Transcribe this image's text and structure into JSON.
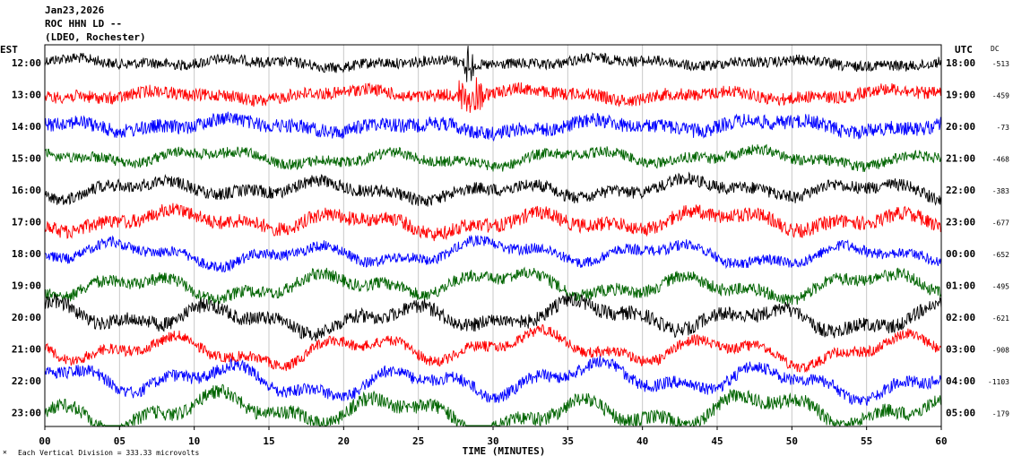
{
  "header": {
    "date": "Jan23,2026",
    "station": "ROC HHN LD --",
    "network": "(LDEO, Rochester)"
  },
  "footer": {
    "scale_note": "Each Vertical Division = 333.33 microvolts"
  },
  "chart_data": {
    "type": "line",
    "title": "",
    "xlabel": "TIME (MINUTES)",
    "left_axis_label": "EST",
    "right_axis_label": "UTC",
    "dc_label": "DC",
    "xlim": [
      0,
      60
    ],
    "x_ticks": [
      "00",
      "05",
      "10",
      "15",
      "20",
      "25",
      "30",
      "35",
      "40",
      "45",
      "50",
      "55",
      "60"
    ],
    "trace_colors": [
      "#000000",
      "#ff0000",
      "#0000ff",
      "#006400"
    ],
    "rows": [
      {
        "est": "12:00",
        "utc": "18:00",
        "dc": "-513"
      },
      {
        "est": "13:00",
        "utc": "19:00",
        "dc": "-459"
      },
      {
        "est": "14:00",
        "utc": "20:00",
        "dc": "-73"
      },
      {
        "est": "15:00",
        "utc": "21:00",
        "dc": "-468"
      },
      {
        "est": "16:00",
        "utc": "22:00",
        "dc": "-383"
      },
      {
        "est": "17:00",
        "utc": "23:00",
        "dc": "-677"
      },
      {
        "est": "18:00",
        "utc": "00:00",
        "dc": "-652"
      },
      {
        "est": "19:00",
        "utc": "01:00",
        "dc": "-495"
      },
      {
        "est": "20:00",
        "utc": "02:00",
        "dc": "-621"
      },
      {
        "est": "21:00",
        "utc": "03:00",
        "dc": "-908"
      },
      {
        "est": "22:00",
        "utc": "04:00",
        "dc": "-1103"
      },
      {
        "est": "23:00",
        "utc": "05:00",
        "dc": "-179"
      }
    ]
  }
}
